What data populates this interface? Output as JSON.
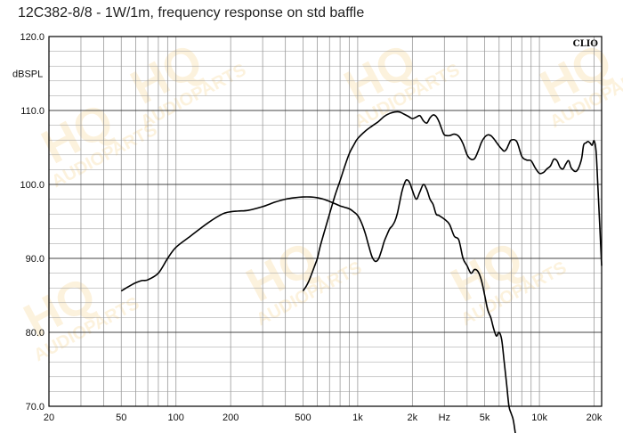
{
  "chart_data": {
    "type": "line",
    "title": "12C382-8/8 - 1W/1m, frequency response on std baffle",
    "ylabel": "dBSPL",
    "xlabel": "Hz",
    "x_scale": "log",
    "xlim": [
      20,
      22000
    ],
    "ylim": [
      70,
      120
    ],
    "grid": true,
    "x_ticks": [
      {
        "value": 20,
        "label": "20"
      },
      {
        "value": 50,
        "label": "50"
      },
      {
        "value": 100,
        "label": "100"
      },
      {
        "value": 200,
        "label": "200"
      },
      {
        "value": 500,
        "label": "500"
      },
      {
        "value": 1000,
        "label": "1k"
      },
      {
        "value": 2000,
        "label": "2k"
      },
      {
        "value": 5000,
        "label": "5k"
      },
      {
        "value": 10000,
        "label": "10k"
      },
      {
        "value": 20000,
        "label": "20k"
      }
    ],
    "x_unit_label": {
      "value": 3000,
      "label": "Hz"
    },
    "y_ticks": [
      {
        "value": 120,
        "label": "120.0"
      },
      {
        "value": 110,
        "label": "110.0"
      },
      {
        "value": 100,
        "label": "100.0"
      },
      {
        "value": 90,
        "label": "90.0"
      },
      {
        "value": 80,
        "label": "80.0"
      },
      {
        "value": 70,
        "label": "70.0"
      }
    ],
    "series": [
      {
        "x": [
          50,
          55,
          60,
          65,
          70,
          80,
          90,
          100,
          120,
          150,
          180,
          200,
          220,
          250,
          300,
          350,
          400,
          450,
          500,
          550,
          600,
          650,
          700,
          750,
          800,
          850,
          900,
          950,
          1000,
          1050,
          1100,
          1150,
          1200,
          1250,
          1300,
          1350,
          1400,
          1450,
          1500,
          1550,
          1600,
          1650,
          1700,
          1750,
          1800,
          1850,
          1900,
          1950,
          2000,
          2100,
          2200,
          2300,
          2400,
          2500,
          2600,
          2700,
          2800,
          3000,
          3200,
          3400,
          3600,
          3800,
          4000,
          4200,
          4400,
          4600,
          4800,
          5000,
          5200,
          5400,
          5600,
          5800,
          6000,
          6200,
          6400,
          6600,
          6800,
          7000,
          7200,
          7500
        ],
        "y": [
          85.6,
          86.2,
          86.7,
          87.0,
          87.1,
          88.0,
          90.0,
          91.5,
          93.0,
          94.8,
          96.0,
          96.3,
          96.4,
          96.5,
          97.0,
          97.6,
          98.0,
          98.2,
          98.3,
          98.3,
          98.2,
          98.0,
          97.7,
          97.4,
          97.1,
          96.9,
          96.7,
          96.3,
          95.8,
          94.8,
          93.4,
          91.7,
          90.2,
          89.6,
          89.9,
          91.0,
          92.3,
          93.2,
          94.0,
          94.4,
          95.0,
          96.0,
          97.5,
          99.0,
          100.0,
          100.6,
          100.5,
          100.0,
          99.2,
          98.0,
          99.0,
          100.0,
          99.3,
          98.0,
          97.3,
          96.0,
          95.8,
          95.3,
          94.6,
          93.0,
          92.5,
          90.0,
          89.0,
          88.0,
          88.5,
          88.2,
          87.0,
          85.0,
          83.0,
          82.0,
          80.5,
          79.5,
          80.0,
          79.0,
          76.0,
          73.0,
          70.0,
          69.0,
          68.0,
          65.0
        ]
      },
      {
        "x": [
          500,
          520,
          540,
          560,
          580,
          600,
          620,
          650,
          700,
          750,
          800,
          850,
          900,
          950,
          1000,
          1100,
          1200,
          1300,
          1400,
          1500,
          1600,
          1700,
          1800,
          1900,
          2000,
          2100,
          2200,
          2300,
          2400,
          2500,
          2600,
          2700,
          2800,
          2900,
          3000,
          3200,
          3400,
          3600,
          3800,
          4000,
          4200,
          4400,
          4600,
          4800,
          5000,
          5200,
          5400,
          5600,
          5800,
          6000,
          6200,
          6400,
          6600,
          6800,
          7000,
          7500,
          8000,
          8500,
          9000,
          9500,
          10000,
          10500,
          11000,
          11500,
          12000,
          12500,
          13000,
          13500,
          14000,
          14500,
          15000,
          16000,
          17000,
          17500,
          18000,
          18500,
          19000,
          19500,
          20000,
          20500,
          21000,
          22000
        ],
        "y": [
          85.6,
          86.2,
          87.0,
          88.0,
          89.0,
          90.0,
          91.5,
          93.3,
          96.0,
          98.5,
          100.5,
          102.5,
          104.2,
          105.3,
          106.2,
          107.2,
          107.9,
          108.5,
          109.2,
          109.6,
          109.8,
          109.8,
          109.5,
          109.2,
          108.9,
          109.1,
          109.3,
          108.6,
          108.3,
          109.0,
          109.4,
          109.2,
          108.5,
          107.5,
          106.7,
          106.6,
          106.8,
          106.5,
          105.5,
          104.0,
          103.4,
          103.5,
          104.5,
          105.7,
          106.4,
          106.7,
          106.6,
          106.2,
          105.7,
          105.2,
          104.8,
          104.5,
          104.8,
          105.5,
          106.0,
          105.8,
          103.8,
          103.3,
          103.2,
          102.2,
          101.5,
          101.6,
          102.1,
          102.5,
          103.4,
          103.2,
          102.3,
          102.1,
          102.8,
          103.2,
          102.2,
          101.8,
          103.3,
          105.3,
          105.6,
          105.8,
          105.6,
          105.3,
          105.9,
          104.5,
          99.5,
          89.0
        ]
      }
    ]
  },
  "watermark": {
    "line1": "HQ",
    "line2": "AUDIOPARTS"
  },
  "badge": "CLIO",
  "colors": {
    "grid": "#9a9a9a",
    "line": "#000000",
    "watermark": "#f6c66a"
  }
}
